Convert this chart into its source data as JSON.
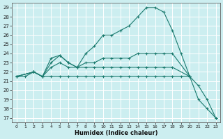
{
  "xlabel": "Humidex (Indice chaleur)",
  "bg_color": "#cceef0",
  "line_color": "#1a7a6e",
  "grid_color": "#ffffff",
  "ylim": [
    16.5,
    29.5
  ],
  "xlim": [
    -0.5,
    23.5
  ],
  "yticks": [
    17,
    18,
    19,
    20,
    21,
    22,
    23,
    24,
    25,
    26,
    27,
    28,
    29
  ],
  "xticks": [
    0,
    1,
    2,
    3,
    4,
    5,
    6,
    7,
    8,
    9,
    10,
    11,
    12,
    13,
    14,
    15,
    16,
    17,
    18,
    19,
    20,
    21,
    22,
    23
  ],
  "series1_x": [
    0,
    1,
    2,
    3,
    4,
    5,
    6,
    7,
    8,
    9,
    10,
    11,
    12,
    13,
    14,
    15,
    16,
    17,
    18,
    19,
    20,
    21,
    22,
    23
  ],
  "series1_y": [
    21.5,
    21.5,
    22.0,
    21.5,
    23.5,
    23.8,
    23.0,
    22.5,
    24.0,
    24.8,
    26.0,
    26.0,
    26.5,
    27.0,
    28.0,
    29.0,
    29.0,
    28.5,
    26.5,
    24.0,
    21.5,
    19.0,
    18.0,
    17.0
  ],
  "series2_x": [
    0,
    2,
    3,
    4,
    5,
    6,
    7,
    8,
    9,
    10,
    11,
    12,
    13,
    14,
    15,
    16,
    17,
    18,
    20
  ],
  "series2_y": [
    21.5,
    22.0,
    21.5,
    23.0,
    23.8,
    23.0,
    22.5,
    23.0,
    23.0,
    23.5,
    23.5,
    23.5,
    23.5,
    24.0,
    24.0,
    24.0,
    24.0,
    24.0,
    21.5
  ],
  "series3_x": [
    0,
    2,
    3,
    4,
    5,
    6,
    7,
    8,
    9,
    10,
    11,
    12,
    13,
    14,
    15,
    16,
    17,
    18,
    20
  ],
  "series3_y": [
    21.5,
    22.0,
    21.5,
    22.5,
    23.0,
    22.5,
    22.5,
    22.5,
    22.5,
    22.5,
    22.5,
    22.5,
    22.5,
    22.5,
    22.5,
    22.5,
    22.5,
    22.5,
    21.5
  ],
  "series4_x": [
    0,
    2,
    3,
    4,
    5,
    6,
    7,
    8,
    9,
    10,
    11,
    12,
    13,
    14,
    15,
    16,
    17,
    18,
    19,
    20,
    21,
    22,
    23
  ],
  "series4_y": [
    21.5,
    22.0,
    21.5,
    21.5,
    21.5,
    21.5,
    21.5,
    21.5,
    21.5,
    21.5,
    21.5,
    21.5,
    21.5,
    21.5,
    21.5,
    21.5,
    21.5,
    21.5,
    21.5,
    21.5,
    20.5,
    19.0,
    17.0
  ]
}
